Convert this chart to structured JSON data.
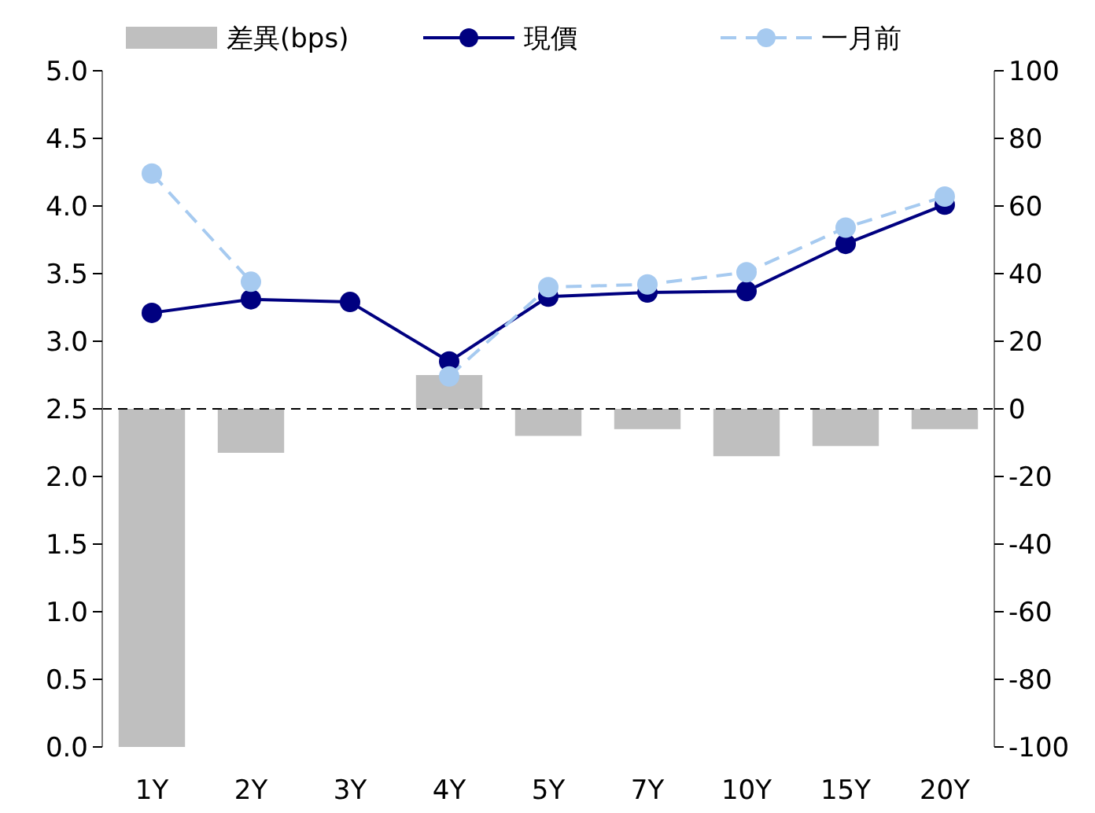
{
  "chart_data": {
    "type": "bar",
    "categories": [
      "1Y",
      "2Y",
      "3Y",
      "4Y",
      "5Y",
      "7Y",
      "10Y",
      "15Y",
      "20Y"
    ],
    "series": [
      {
        "name": "差異(bps)",
        "axis": "y2",
        "color": "#bfbfbf",
        "values": [
          -100,
          -13,
          null,
          10,
          -8,
          -6,
          -14,
          -11,
          -6
        ]
      },
      {
        "name": "現價",
        "type": "line",
        "color": "#000080",
        "line_style": "solid",
        "values": [
          3.21,
          3.31,
          3.29,
          2.85,
          3.33,
          3.36,
          3.37,
          3.72,
          4.01
        ]
      },
      {
        "name": "一月前",
        "type": "line",
        "color": "#a6caf0",
        "line_style": "dashed",
        "values": [
          4.24,
          3.44,
          null,
          2.74,
          3.4,
          3.42,
          3.51,
          3.84,
          4.07
        ]
      }
    ],
    "ylim": [
      0,
      5
    ],
    "yticks": [
      {
        "value": 0,
        "label": "0.0"
      },
      {
        "value": 0.5,
        "label": "0.5"
      },
      {
        "value": 1,
        "label": "1.0"
      },
      {
        "value": 1.5,
        "label": "1.5"
      },
      {
        "value": 2,
        "label": "2.0"
      },
      {
        "value": 2.5,
        "label": "2.5"
      },
      {
        "value": 3,
        "label": "3.0"
      },
      {
        "value": 3.5,
        "label": "3.5"
      },
      {
        "value": 4,
        "label": "4.0"
      },
      {
        "value": 4.5,
        "label": "4.5"
      },
      {
        "value": 5,
        "label": "5.0"
      }
    ],
    "y2lim": [
      -100,
      100
    ],
    "y2ticks": [
      -100,
      -80,
      -60,
      -40,
      -20,
      0,
      20,
      40,
      60,
      80,
      100
    ],
    "ref_lines": [
      {
        "axis": "y2",
        "value": 0,
        "color": "#000000",
        "line_style": "dashed"
      }
    ],
    "marker": "circle",
    "legend": "top",
    "grid": false
  }
}
